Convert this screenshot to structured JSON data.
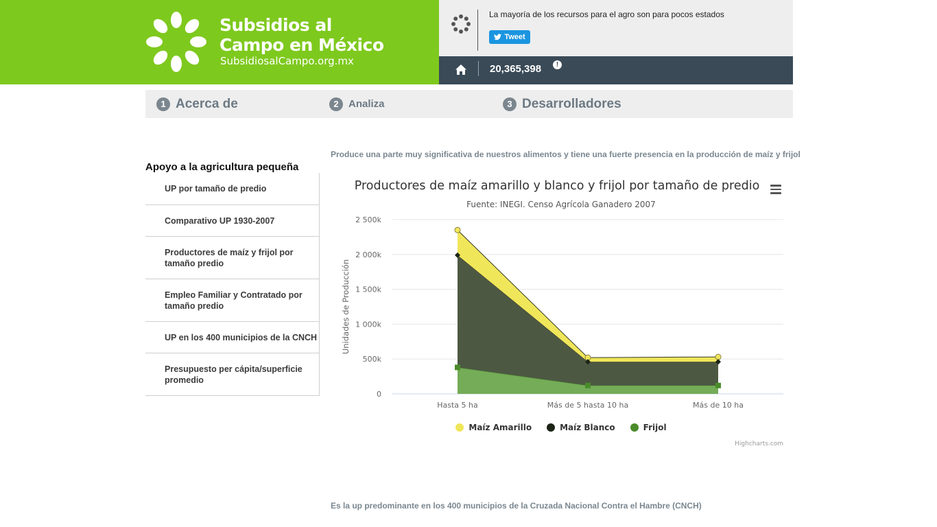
{
  "header": {
    "logo_title_line1": "Subsidios al",
    "logo_title_line2": "Campo en México",
    "logo_url": "SubsidiosalCampo.org.mx",
    "tagline": "La mayoría de los recursos para el agro son para pocos estados",
    "tweet_label": "Tweet",
    "counter": "20,365,398",
    "alert_symbol": "!"
  },
  "nav": {
    "items": [
      {
        "num": "1",
        "label": "Acerca de"
      },
      {
        "num": "2",
        "label": "Analiza"
      },
      {
        "num": "3",
        "label": "Desarrolladores"
      }
    ]
  },
  "sidebar": {
    "title": "Apoyo a la agricultura pequeña",
    "items": [
      {
        "label": "UP por tamaño de predio"
      },
      {
        "label": "Comparativo UP 1930-2007"
      },
      {
        "label": "Productores de maíz y frijol por tamaño predio"
      },
      {
        "label": "Empleo Familiar y Contratado por tamaño predio"
      },
      {
        "label": "UP en los 400 municipios de la CNCH"
      },
      {
        "label": "Presupuesto per cápita/superficie promedio"
      }
    ]
  },
  "main": {
    "lead_text": "Produce una parte muy significativa de nuestros alimentos y tiene una fuerte presencia en la producción de maíz y frijol",
    "bottom_text": "Es la up predominante en los 400 municipios de la Cruzada Nacional Contra el Hambre (CNCH)",
    "credits": "Highcharts.com"
  },
  "colors": {
    "brand_green": "#7ec91e",
    "dark_bar": "#3a4a57",
    "maiz_amarillo": "#f0e65a",
    "maiz_blanco": "#4d5843",
    "frijol": "#74ac58"
  },
  "chart_data": {
    "type": "area",
    "stacking": "normal",
    "title": "Productores de maíz amarillo y blanco y frijol por tamaño de predio",
    "subtitle": "Fuente: INEGI. Censo Agrícola Ganadero 2007",
    "ylabel": "Unidades de Producción",
    "xlabel": "",
    "ylim": [
      0,
      2500000
    ],
    "yticks": [
      0,
      500000,
      1000000,
      1500000,
      2000000,
      2500000
    ],
    "ytick_labels": [
      "0",
      "500k",
      "1 000k",
      "1 500k",
      "2 000k",
      "2 500k"
    ],
    "categories": [
      "Hasta 5 ha",
      "Más de 5 hasta 10 ha",
      "Más de 10 ha"
    ],
    "grid": true,
    "legend_position": "bottom-center",
    "series": [
      {
        "name": "Maíz Amarillo",
        "values": [
          360000,
          60000,
          70000
        ],
        "color": "#f0e65a",
        "marker": "circle"
      },
      {
        "name": "Maíz Blanco",
        "values": [
          1610000,
          340000,
          340000
        ],
        "color": "#4d5843",
        "marker": "diamond"
      },
      {
        "name": "Frijol",
        "values": [
          380000,
          120000,
          120000
        ],
        "color": "#74ac58",
        "marker": "square"
      }
    ],
    "legend_dot_colors": [
      "#f0e65a",
      "#1c2416",
      "#4a8b2a"
    ]
  }
}
